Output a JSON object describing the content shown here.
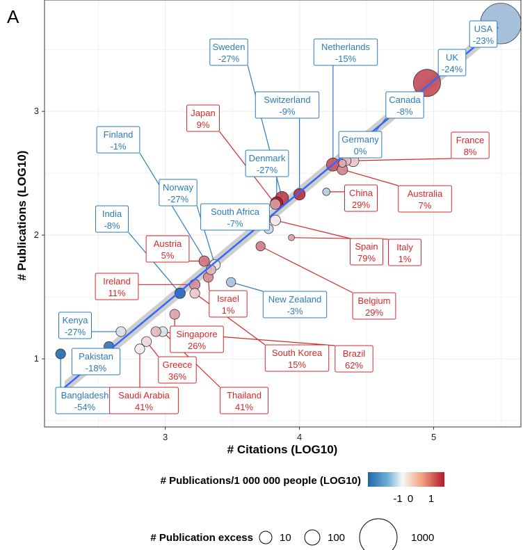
{
  "panel_tag": "A",
  "colors": {
    "fit_line": "#3366ff",
    "ribbon": "#bdbdbd",
    "pos_label": "#d62728",
    "neg_label": "#2b7bb9",
    "grid": "#ebebeb",
    "gradient_low": "#2166ac",
    "gradient_mid": "#f7f7f7",
    "gradient_high": "#b2182b"
  },
  "legend": {
    "color_title": "# Publications/1 000 000 people (LOG10)",
    "color_ticks": [
      "-1",
      "0",
      "1"
    ],
    "size_title": "# Publication excess",
    "size_labels": [
      "10",
      "100",
      "1000"
    ]
  },
  "chart_data": {
    "type": "scatter",
    "title": "",
    "xlabel": "# Citations (LOG10)",
    "ylabel": "# Publications (LOG10)",
    "xlim": [
      2.1,
      5.65
    ],
    "ylim": [
      0.45,
      3.9
    ],
    "xticks": [
      "3",
      "4",
      "5"
    ],
    "yticks": [
      "1",
      "2",
      "3"
    ],
    "grid": true,
    "fit_line": {
      "x": [
        2.25,
        5.48
      ],
      "y": [
        0.77,
        3.68
      ]
    },
    "labels": [
      {
        "name": "USA",
        "pct": "-23%"
      },
      {
        "name": "UK",
        "pct": "-24%"
      },
      {
        "name": "Canada",
        "pct": "-8%"
      },
      {
        "name": "Netherlands",
        "pct": "-15%"
      },
      {
        "name": "Sweden",
        "pct": "-27%"
      },
      {
        "name": "Switzerland",
        "pct": "-9%"
      },
      {
        "name": "Germany",
        "pct": "0%"
      },
      {
        "name": "France",
        "pct": "8%"
      },
      {
        "name": "Japan",
        "pct": "9%"
      },
      {
        "name": "Denmark",
        "pct": "-27%"
      },
      {
        "name": "Finland",
        "pct": "-1%"
      },
      {
        "name": "China",
        "pct": "29%"
      },
      {
        "name": "Australia",
        "pct": "7%"
      },
      {
        "name": "Norway",
        "pct": "-27%"
      },
      {
        "name": "South Africa",
        "pct": "-7%"
      },
      {
        "name": "India",
        "pct": "-8%"
      },
      {
        "name": "Austria",
        "pct": "5%"
      },
      {
        "name": "Spain",
        "pct": "79%"
      },
      {
        "name": "Italy",
        "pct": "1%"
      },
      {
        "name": "Ireland",
        "pct": "11%"
      },
      {
        "name": "Israel",
        "pct": "1%"
      },
      {
        "name": "New Zealand",
        "pct": "-3%"
      },
      {
        "name": "Belgium",
        "pct": "29%"
      },
      {
        "name": "Kenya",
        "pct": "-27%"
      },
      {
        "name": "Singapore",
        "pct": "26%"
      },
      {
        "name": "Pakistan",
        "pct": "-18%"
      },
      {
        "name": "South Korea",
        "pct": "15%"
      },
      {
        "name": "Brazil",
        "pct": "62%"
      },
      {
        "name": "Greece",
        "pct": "36%"
      },
      {
        "name": "Bangladesh",
        "pct": "-54%"
      },
      {
        "name": "Saudi Arabia",
        "pct": "41%"
      },
      {
        "name": "Thailand",
        "pct": "41%"
      }
    ],
    "points": [
      {
        "name": "USA",
        "x": 5.5,
        "y": 3.71,
        "color": -0.55,
        "excess": 1000
      },
      {
        "name": "UK",
        "x": 4.95,
        "y": 3.23,
        "color": 1.1,
        "excess": 400
      },
      {
        "name": "Canada",
        "x": 4.4,
        "y": 2.6,
        "color": 0.3,
        "excess": 40
      },
      {
        "name": "Netherlands",
        "x": 4.25,
        "y": 2.57,
        "color": 1.05,
        "excess": 60
      },
      {
        "name": "Germany",
        "x": 4.32,
        "y": 2.58,
        "color": 0.5,
        "excess": 10
      },
      {
        "name": "Australia",
        "x": 4.32,
        "y": 2.53,
        "color": 0.75,
        "excess": 30
      },
      {
        "name": "France",
        "x": 4.35,
        "y": 2.6,
        "color": 0.4,
        "excess": 20
      },
      {
        "name": "China",
        "x": 4.2,
        "y": 2.35,
        "color": -0.4,
        "excess": 8
      },
      {
        "name": "Switzerland",
        "x": 4.0,
        "y": 2.33,
        "color": 1.3,
        "excess": 40
      },
      {
        "name": "Sweden",
        "x": 3.87,
        "y": 2.3,
        "color": 1.2,
        "excess": 60
      },
      {
        "name": "Denmark",
        "x": 3.83,
        "y": 2.26,
        "color": 1.45,
        "excess": 50
      },
      {
        "name": "Japan",
        "x": 3.82,
        "y": 2.25,
        "color": 0.6,
        "excess": 30
      },
      {
        "name": "Spain",
        "x": 3.82,
        "y": 2.12,
        "color": 0.1,
        "excess": 30
      },
      {
        "name": "Italy",
        "x": 3.94,
        "y": 1.98,
        "color": 0.55,
        "excess": 3
      },
      {
        "name": "South Africa",
        "x": 3.77,
        "y": 2.05,
        "color": -0.3,
        "excess": 20
      },
      {
        "name": "Belgium",
        "x": 3.71,
        "y": 1.91,
        "color": 0.8,
        "excess": 20
      },
      {
        "name": "New Zealand",
        "x": 3.49,
        "y": 1.62,
        "color": -0.5,
        "excess": 20
      },
      {
        "name": "Norway",
        "x": 3.37,
        "y": 1.76,
        "color": -0.1,
        "excess": 30
      },
      {
        "name": "Austria",
        "x": 3.29,
        "y": 1.79,
        "color": 0.85,
        "excess": 30
      },
      {
        "name": "Israel",
        "x": 3.32,
        "y": 1.66,
        "color": 0.7,
        "excess": 25
      },
      {
        "name": "Finland",
        "x": 3.34,
        "y": 1.72,
        "color": 0.45,
        "excess": 25
      },
      {
        "name": "Ireland",
        "x": 3.22,
        "y": 1.6,
        "color": 0.7,
        "excess": 30
      },
      {
        "name": "India",
        "x": 3.11,
        "y": 1.53,
        "color": -1.3,
        "excess": 30
      },
      {
        "name": "South Korea",
        "x": 3.22,
        "y": 1.53,
        "color": 0.3,
        "excess": 25
      },
      {
        "name": "Singapore",
        "x": 3.07,
        "y": 1.36,
        "color": 0.55,
        "excess": 25
      },
      {
        "name": "Thailand",
        "x": 2.98,
        "y": 1.22,
        "color": -0.2,
        "excess": 25
      },
      {
        "name": "Brazil",
        "x": 2.93,
        "y": 1.22,
        "color": 0.4,
        "excess": 25
      },
      {
        "name": "Greece",
        "x": 2.86,
        "y": 1.14,
        "color": 0.2,
        "excess": 25
      },
      {
        "name": "Saudi Arabia",
        "x": 2.81,
        "y": 1.08,
        "color": 0.05,
        "excess": 25
      },
      {
        "name": "Kenya",
        "x": 2.67,
        "y": 1.22,
        "color": -0.2,
        "excess": 25
      },
      {
        "name": "Pakistan",
        "x": 2.58,
        "y": 1.1,
        "color": -1.2,
        "excess": 25
      },
      {
        "name": "Bangladesh",
        "x": 2.22,
        "y": 1.04,
        "color": -1.3,
        "excess": 25
      }
    ]
  }
}
